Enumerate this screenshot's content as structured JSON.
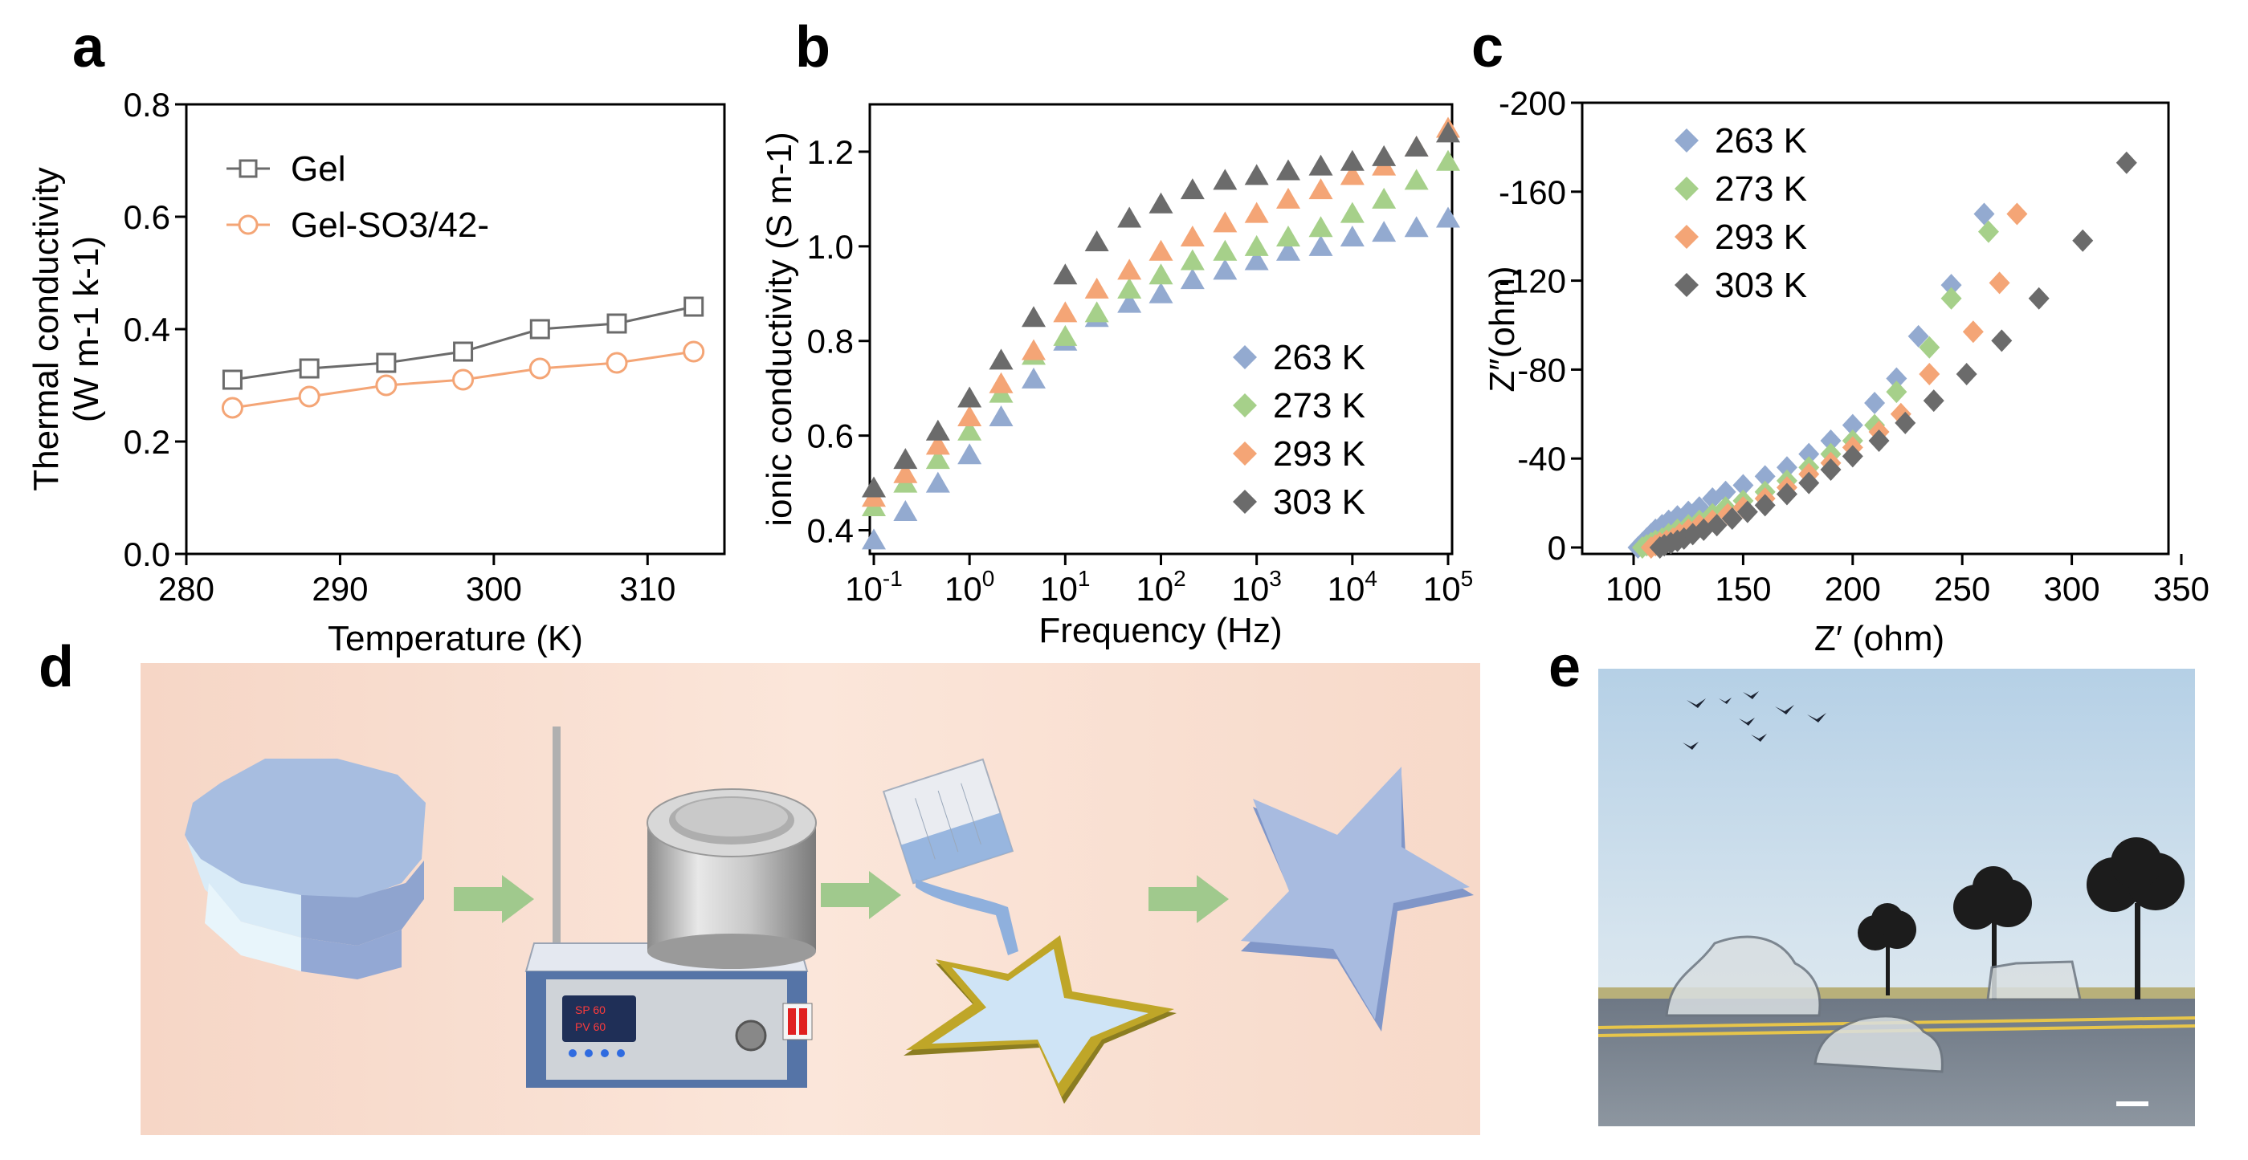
{
  "panels": {
    "a": "a",
    "b": "b",
    "c": "c",
    "d": "d",
    "e": "e"
  },
  "colors": {
    "gel": "#6b6b6b",
    "gel_so4": "#f4a576",
    "k263": "#93aad0",
    "k273": "#a6d08a",
    "k293": "#f4a576",
    "k303": "#6b6b6b",
    "axis": "#000000",
    "scheme_bg": "#f8dccd",
    "bar": "#a0c98d"
  },
  "chart_data": [
    {
      "id": "a",
      "type": "line",
      "xlabel": "Temperature (K)",
      "ylabel_line1": "Thermal conductivity",
      "ylabel_line2": "(W m-1 k-1)",
      "xlim": [
        280,
        315
      ],
      "ylim": [
        0.0,
        0.8
      ],
      "xticks": [
        280,
        290,
        300,
        310
      ],
      "xtick_labels": [
        "280",
        "290",
        "300",
        "310"
      ],
      "yticks": [
        0.0,
        0.2,
        0.4,
        0.6,
        0.8
      ],
      "ytick_labels": [
        "0.0",
        "0.2",
        "0.4",
        "0.6",
        "0.8"
      ],
      "legend": {
        "placement": "top-left",
        "entries": [
          "Gel",
          "Gel-SO3/42-"
        ]
      },
      "series": [
        {
          "name": "Gel",
          "marker": "square",
          "x": [
            283,
            288,
            293,
            298,
            303,
            308,
            313
          ],
          "y": [
            0.31,
            0.33,
            0.34,
            0.36,
            0.4,
            0.41,
            0.44
          ]
        },
        {
          "name": "Gel-SO3/42-",
          "marker": "circle",
          "x": [
            283,
            288,
            293,
            298,
            303,
            308,
            313
          ],
          "y": [
            0.26,
            0.28,
            0.3,
            0.31,
            0.33,
            0.34,
            0.36
          ]
        }
      ]
    },
    {
      "id": "b",
      "type": "scatter",
      "xlabel": "Frequency (Hz)",
      "ylabel": "ionic conductivity (S m-1)",
      "xscale": "log",
      "xlim_log10": [
        -1,
        5
      ],
      "ylim": [
        0.35,
        1.3
      ],
      "xtick_base": "10",
      "xtick_exponents": [
        "-1",
        "0",
        "1",
        "2",
        "3",
        "4",
        "5"
      ],
      "yticks": [
        0.4,
        0.6,
        0.8,
        1.0,
        1.2
      ],
      "ytick_labels": [
        "0.4",
        "0.6",
        "0.8",
        "1.0",
        "1.2"
      ],
      "legend": {
        "placement": "bottom-right",
        "entries": [
          "263 K",
          "273 K",
          "293 K",
          "303 K"
        ]
      },
      "x_log10": [
        -1,
        -0.67,
        -0.33,
        0,
        0.33,
        0.67,
        1,
        1.33,
        1.67,
        2,
        2.33,
        2.67,
        3,
        3.33,
        3.67,
        4,
        4.33,
        4.67,
        5
      ],
      "series": [
        {
          "name": "263 K",
          "marker": "triangle",
          "y": [
            0.38,
            0.44,
            0.5,
            0.56,
            0.64,
            0.72,
            0.8,
            0.85,
            0.88,
            0.9,
            0.93,
            0.95,
            0.97,
            0.99,
            1.0,
            1.02,
            1.03,
            1.04,
            1.06
          ]
        },
        {
          "name": "273 K",
          "marker": "triangle",
          "y": [
            0.45,
            0.5,
            0.55,
            0.61,
            0.69,
            0.77,
            0.81,
            0.86,
            0.91,
            0.94,
            0.97,
            0.99,
            1.0,
            1.02,
            1.04,
            1.07,
            1.1,
            1.14,
            1.18
          ]
        },
        {
          "name": "293 K",
          "marker": "triangle",
          "y": [
            0.47,
            0.52,
            0.58,
            0.64,
            0.71,
            0.78,
            0.86,
            0.91,
            0.95,
            0.99,
            1.02,
            1.05,
            1.07,
            1.1,
            1.12,
            1.15,
            1.17,
            1.21,
            1.25
          ]
        },
        {
          "name": "303 K",
          "marker": "triangle",
          "y": [
            0.49,
            0.55,
            0.61,
            0.68,
            0.76,
            0.85,
            0.94,
            1.01,
            1.06,
            1.09,
            1.12,
            1.14,
            1.15,
            1.16,
            1.17,
            1.18,
            1.19,
            1.21,
            1.24
          ]
        }
      ]
    },
    {
      "id": "c",
      "type": "scatter",
      "xlabel": "Z′ (ohm)",
      "ylabel": "Z″(ohm)",
      "xlim": [
        90,
        350
      ],
      "ylim": [
        0,
        -200
      ],
      "xticks": [
        100,
        150,
        200,
        250,
        300,
        350
      ],
      "xtick_labels": [
        "100",
        "150",
        "200",
        "250",
        "300",
        "350"
      ],
      "yticks": [
        0,
        -40,
        -80,
        -120,
        -160,
        -200
      ],
      "ytick_labels": [
        "0",
        "-40",
        "-80",
        "-120",
        "-160",
        "-200"
      ],
      "legend": {
        "placement": "top-left",
        "entries": [
          "263 K",
          "273 K",
          "293 K",
          "303 K"
        ]
      },
      "series": [
        {
          "name": "263 K",
          "marker": "diamond",
          "x": [
            102,
            104,
            106,
            108,
            110,
            113,
            116,
            120,
            125,
            130,
            136,
            142,
            150,
            160,
            170,
            180,
            190,
            200,
            210,
            220,
            230,
            245,
            260
          ],
          "y": [
            0,
            -2,
            -4,
            -6,
            -8,
            -10,
            -12,
            -14,
            -16,
            -18,
            -22,
            -25,
            -28,
            -32,
            -36,
            -42,
            -48,
            -55,
            -65,
            -76,
            -95,
            -118,
            -150
          ]
        },
        {
          "name": "273 K",
          "marker": "diamond",
          "x": [
            104,
            106,
            108,
            110,
            113,
            116,
            120,
            125,
            130,
            136,
            142,
            150,
            160,
            170,
            180,
            190,
            200,
            210,
            220,
            235,
            245,
            262
          ],
          "y": [
            0,
            -1,
            -2,
            -3,
            -4,
            -6,
            -8,
            -10,
            -12,
            -15,
            -18,
            -21,
            -25,
            -30,
            -36,
            -42,
            -48,
            -55,
            -70,
            -90,
            -112,
            -142
          ]
        },
        {
          "name": "293 K",
          "marker": "diamond",
          "x": [
            108,
            110,
            112,
            115,
            118,
            121,
            125,
            130,
            136,
            143,
            150,
            160,
            170,
            180,
            190,
            200,
            212,
            222,
            235,
            255,
            267,
            275
          ],
          "y": [
            0,
            -1,
            -2,
            -3,
            -4,
            -6,
            -8,
            -10,
            -12,
            -15,
            -18,
            -22,
            -27,
            -33,
            -38,
            -45,
            -52,
            -60,
            -78,
            -97,
            -119,
            -150
          ]
        },
        {
          "name": "303 K",
          "marker": "diamond",
          "x": [
            112,
            114,
            117,
            120,
            123,
            127,
            132,
            138,
            145,
            152,
            160,
            170,
            180,
            190,
            200,
            212,
            224,
            237,
            252,
            268,
            285,
            305,
            325
          ],
          "y": [
            0,
            -1,
            -2,
            -3,
            -4,
            -6,
            -8,
            -10,
            -13,
            -16,
            -19,
            -24,
            -29,
            -35,
            -41,
            -48,
            -56,
            -66,
            -78,
            -93,
            -112,
            -138,
            -173
          ]
        }
      ]
    }
  ],
  "scheme": {
    "hotplate_display_line1": "SP 60",
    "hotplate_display_line2": "PV 60"
  }
}
